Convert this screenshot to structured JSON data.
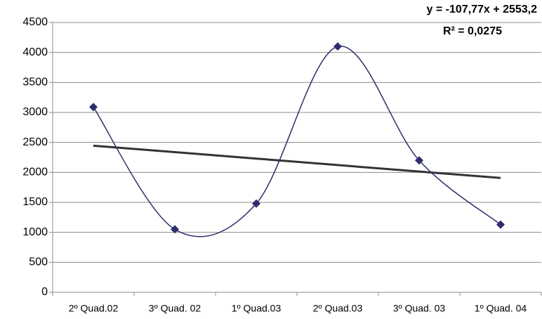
{
  "chart_data": {
    "type": "line",
    "categories": [
      "2º Quad.02",
      "3º Quad. 02",
      "1º Quad.03",
      "2º Quad.03",
      "3º Quad. 03",
      "1º Quad. 04"
    ],
    "series": [
      {
        "color": "#2e2e6b",
        "values": [
          3090,
          1050,
          1480,
          4100,
          2200,
          1130
        ]
      }
    ],
    "trendline": {
      "color": "#333333",
      "values": [
        2445,
        2338,
        2230,
        2122,
        2014,
        1907
      ]
    },
    "annotations": [
      "y = -107,77x + 2553,2",
      "R² = 0,0275"
    ],
    "ylim": [
      0,
      4500
    ],
    "yticks": [
      0,
      500,
      1000,
      1500,
      2000,
      2500,
      3000,
      3500,
      4000,
      4500
    ],
    "grid": true,
    "smooth": true
  }
}
